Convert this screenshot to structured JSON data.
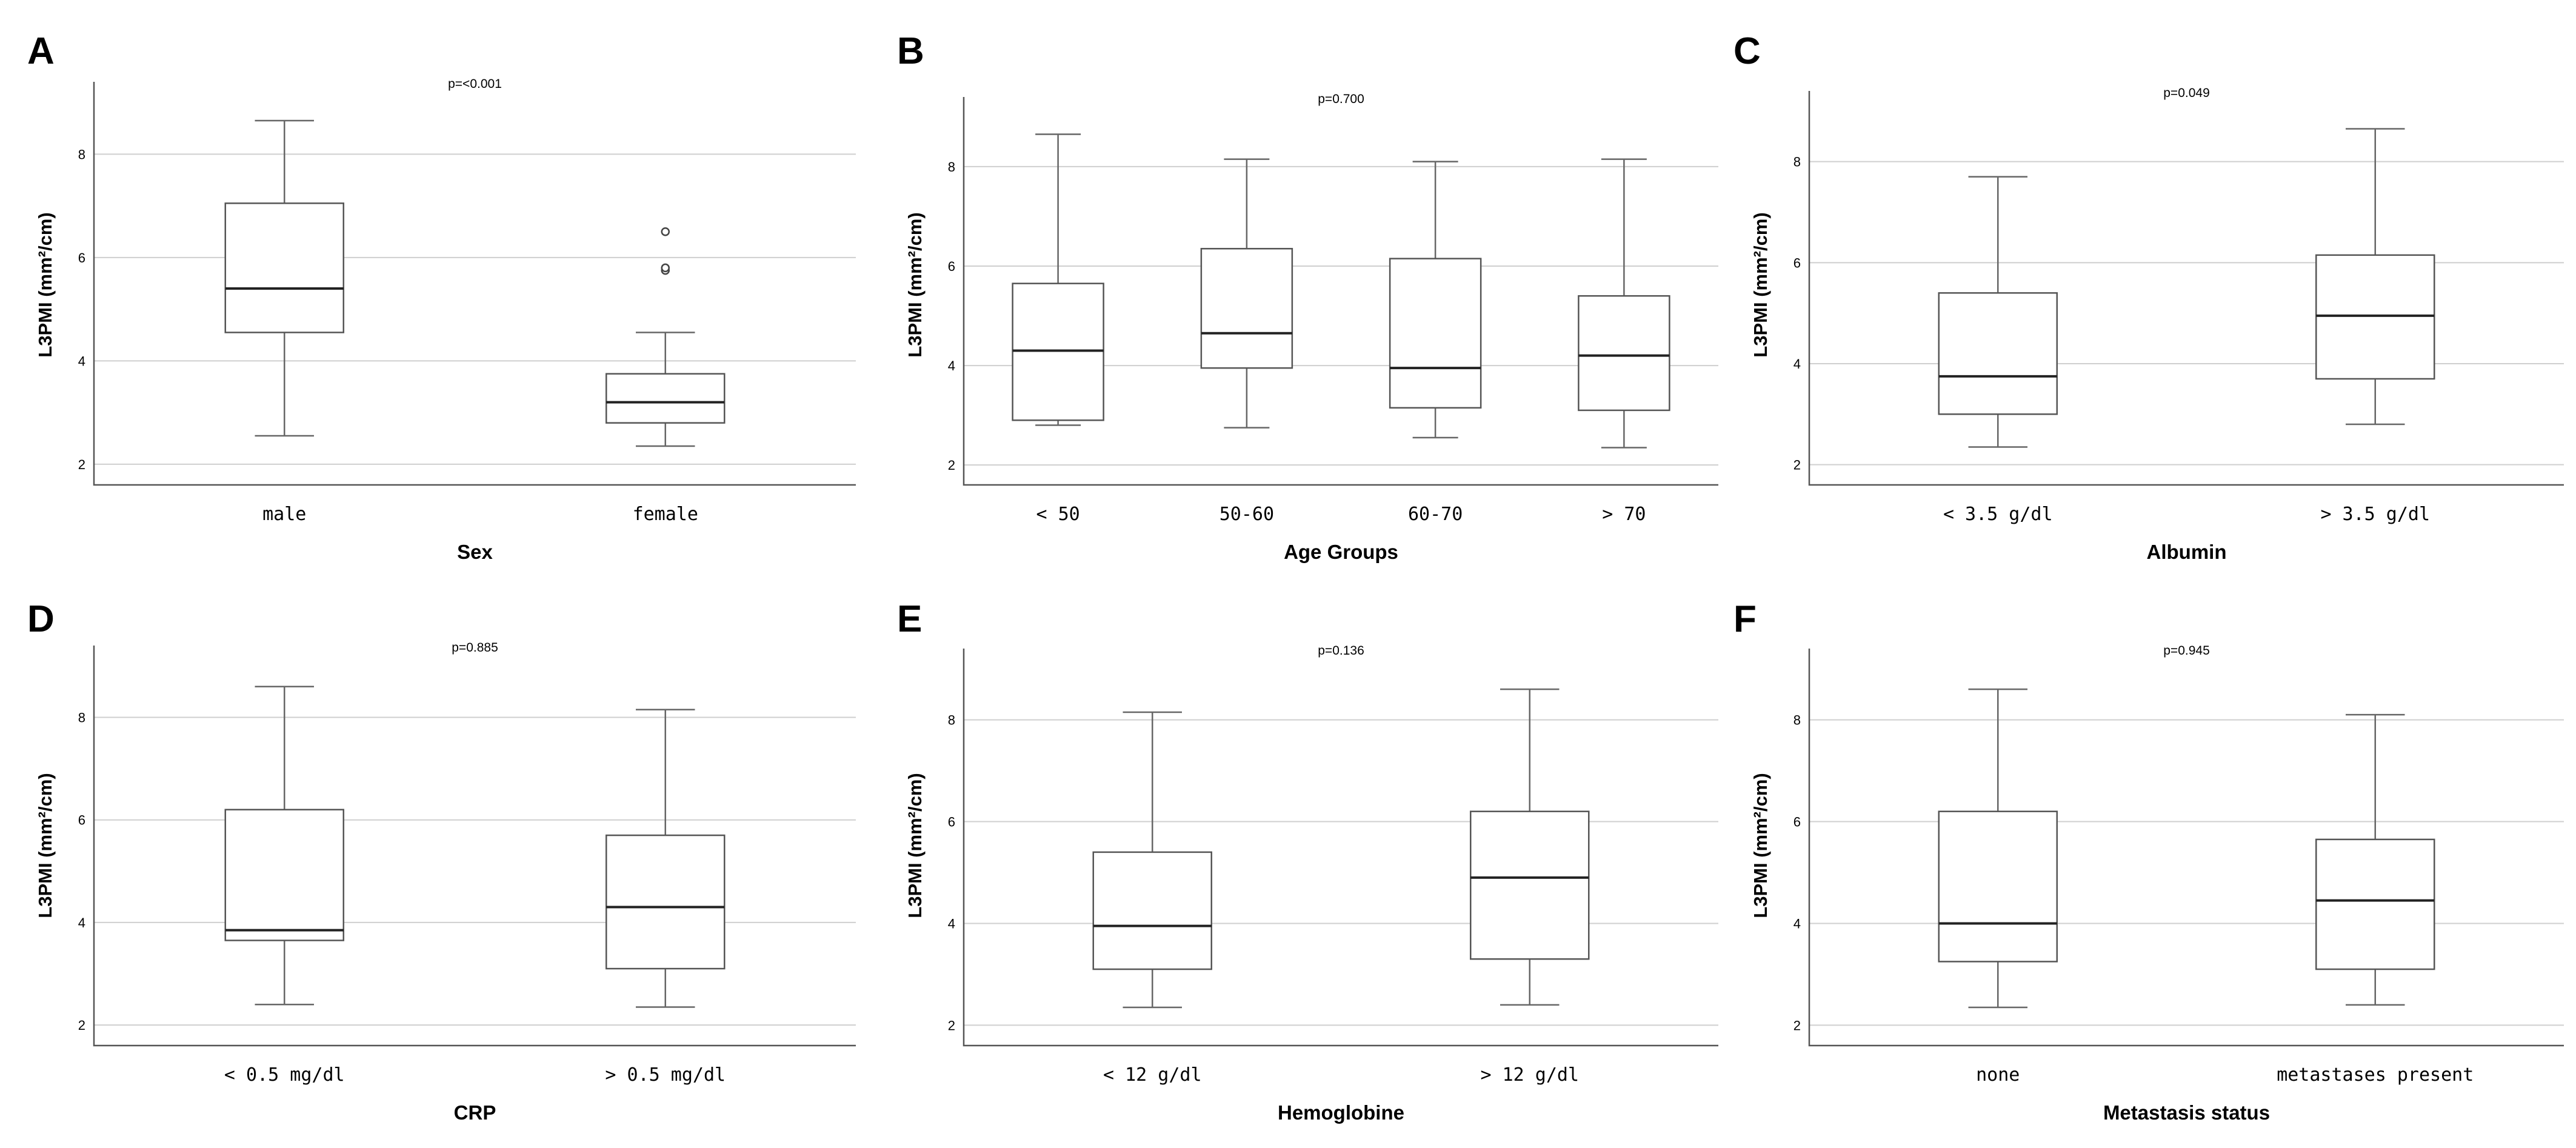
{
  "chart_data": [
    {
      "panel": "A",
      "type": "box",
      "p_value": "p=<0.001",
      "xlabel": "Sex",
      "ylabel": "L3PMI (mm²/cm)",
      "ylim": [
        1.6,
        9.4
      ],
      "yticks": [
        "2",
        "4",
        "6",
        "8"
      ],
      "categories": [
        "male",
        "female"
      ],
      "boxes": [
        {
          "min": 2.55,
          "q1": 4.55,
          "median": 5.4,
          "q3": 7.05,
          "max": 8.65,
          "outliers": []
        },
        {
          "min": 2.35,
          "q1": 2.8,
          "median": 3.2,
          "q3": 3.75,
          "max": 4.55,
          "outliers": [
            5.75,
            5.8,
            6.5
          ]
        }
      ]
    },
    {
      "panel": "B",
      "type": "box",
      "p_value": "p=0.700",
      "xlabel": "Age Groups",
      "ylabel": "L3PMI (mm²/cm)",
      "ylim": [
        1.6,
        9.4
      ],
      "yticks": [
        "2",
        "4",
        "6",
        "8"
      ],
      "categories": [
        "< 50",
        "50-60",
        "60-70",
        "> 70"
      ],
      "boxes": [
        {
          "min": 2.8,
          "q1": 2.9,
          "median": 4.3,
          "q3": 5.65,
          "max": 8.65,
          "outliers": []
        },
        {
          "min": 2.75,
          "q1": 3.95,
          "median": 4.65,
          "q3": 6.35,
          "max": 8.15,
          "outliers": []
        },
        {
          "min": 2.55,
          "q1": 3.15,
          "median": 3.95,
          "q3": 6.15,
          "max": 8.1,
          "outliers": []
        },
        {
          "min": 2.35,
          "q1": 3.1,
          "median": 4.2,
          "q3": 5.4,
          "max": 8.15,
          "outliers": []
        }
      ]
    },
    {
      "panel": "C",
      "type": "box",
      "p_value": "p=0.049",
      "xlabel": "Albumin",
      "ylabel": "L3PMI (mm²/cm)",
      "ylim": [
        1.6,
        9.4
      ],
      "yticks": [
        "2",
        "4",
        "6",
        "8"
      ],
      "categories": [
        "< 3.5 g/dl",
        "> 3.5 g/dl"
      ],
      "boxes": [
        {
          "min": 2.35,
          "q1": 3.0,
          "median": 3.75,
          "q3": 5.4,
          "max": 7.7,
          "outliers": []
        },
        {
          "min": 2.8,
          "q1": 3.7,
          "median": 4.95,
          "q3": 6.15,
          "max": 8.65,
          "outliers": []
        }
      ]
    },
    {
      "panel": "D",
      "type": "box",
      "p_value": "p=0.885",
      "xlabel": "CRP",
      "ylabel": "L3PMI (mm²/cm)",
      "ylim": [
        1.6,
        9.4
      ],
      "yticks": [
        "2",
        "4",
        "6",
        "8"
      ],
      "categories": [
        "< 0.5 mg/dl",
        "> 0.5 mg/dl"
      ],
      "boxes": [
        {
          "min": 2.4,
          "q1": 3.65,
          "median": 3.85,
          "q3": 6.2,
          "max": 8.6,
          "outliers": []
        },
        {
          "min": 2.35,
          "q1": 3.1,
          "median": 4.3,
          "q3": 5.7,
          "max": 8.15,
          "outliers": []
        }
      ]
    },
    {
      "panel": "E",
      "type": "box",
      "p_value": "p=0.136",
      "xlabel": "Hemoglobine",
      "ylabel": "L3PMI (mm²/cm)",
      "ylim": [
        1.6,
        9.4
      ],
      "yticks": [
        "2",
        "4",
        "6",
        "8"
      ],
      "categories": [
        "< 12 g/dl",
        "> 12 g/dl"
      ],
      "boxes": [
        {
          "min": 2.35,
          "q1": 3.1,
          "median": 3.95,
          "q3": 5.4,
          "max": 8.15,
          "outliers": []
        },
        {
          "min": 2.4,
          "q1": 3.3,
          "median": 4.9,
          "q3": 6.2,
          "max": 8.6,
          "outliers": []
        }
      ]
    },
    {
      "panel": "F",
      "type": "box",
      "p_value": "p=0.945",
      "xlabel": "Metastasis status",
      "ylabel": "L3PMI (mm²/cm)",
      "ylim": [
        1.6,
        9.4
      ],
      "yticks": [
        "2",
        "4",
        "6",
        "8"
      ],
      "categories": [
        "none",
        "metastases present"
      ],
      "boxes": [
        {
          "min": 2.35,
          "q1": 3.25,
          "median": 4.0,
          "q3": 6.2,
          "max": 8.6,
          "outliers": []
        },
        {
          "min": 2.4,
          "q1": 3.1,
          "median": 4.45,
          "q3": 5.65,
          "max": 8.1,
          "outliers": []
        }
      ]
    }
  ]
}
